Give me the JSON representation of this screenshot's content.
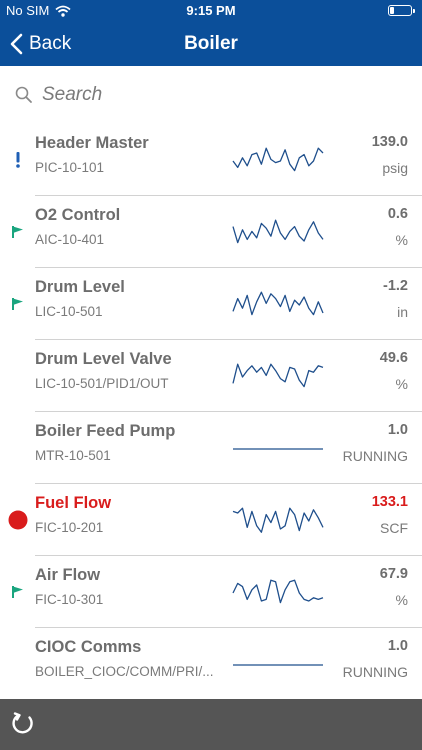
{
  "status_bar": {
    "carrier": "No SIM",
    "time": "9:15 PM",
    "battery_level_fraction": 0.2
  },
  "nav": {
    "back_label": "Back",
    "title": "Boiler"
  },
  "search": {
    "placeholder": "Search"
  },
  "colors": {
    "nav_blue": "#0b4f9a",
    "flag_teal": "#1aa57f",
    "alarm_red": "#d91c1c",
    "info_blue": "#1f5fb5",
    "spark_line": "#1f4f8c",
    "bottom_bar": "#555555"
  },
  "items": [
    {
      "name": "Header Master",
      "tag": "PIC-10-101",
      "value": "139.0",
      "unit": "psig",
      "marker": "exclamation-icon",
      "trend": [
        0.5,
        0.3,
        0.6,
        0.35,
        0.7,
        0.75,
        0.4,
        0.9,
        0.55,
        0.45,
        0.5,
        0.85,
        0.4,
        0.2,
        0.6,
        0.7,
        0.35,
        0.5,
        0.9,
        0.75
      ]
    },
    {
      "name": "O2 Control",
      "tag": "AIC-10-401",
      "value": "0.6",
      "unit": "%",
      "marker": "flag-icon",
      "trend": [
        0.7,
        0.2,
        0.6,
        0.3,
        0.55,
        0.35,
        0.8,
        0.65,
        0.4,
        0.9,
        0.5,
        0.3,
        0.55,
        0.7,
        0.4,
        0.25,
        0.6,
        0.85,
        0.5,
        0.3
      ]
    },
    {
      "name": "Drum Level",
      "tag": "LIC-10-501",
      "value": "-1.2",
      "unit": "in",
      "marker": "flag-icon",
      "trend": [
        0.3,
        0.7,
        0.4,
        0.8,
        0.2,
        0.6,
        0.9,
        0.55,
        0.85,
        0.7,
        0.45,
        0.8,
        0.3,
        0.65,
        0.5,
        0.75,
        0.4,
        0.2,
        0.6,
        0.25
      ]
    },
    {
      "name": "Drum Level Valve",
      "tag": "LIC-10-501/PID1/OUT",
      "value": "49.6",
      "unit": "%",
      "marker": "",
      "trend": [
        0.3,
        0.9,
        0.5,
        0.7,
        0.85,
        0.65,
        0.8,
        0.55,
        0.9,
        0.7,
        0.45,
        0.35,
        0.8,
        0.75,
        0.4,
        0.2,
        0.7,
        0.65,
        0.85,
        0.8
      ]
    },
    {
      "name": "Boiler Feed Pump",
      "tag": "MTR-10-501",
      "value": "1.0",
      "unit": "RUNNING",
      "marker": "",
      "trend": [
        0.5,
        0.5,
        0.5,
        0.5,
        0.5,
        0.5,
        0.5,
        0.5,
        0.5,
        0.5
      ]
    },
    {
      "name": "Fuel Flow",
      "tag": "FIC-10-201",
      "value": "133.1",
      "unit": "SCF",
      "marker": "alarm-dot-icon",
      "alarm": true,
      "trend": [
        0.8,
        0.75,
        0.9,
        0.3,
        0.8,
        0.35,
        0.15,
        0.7,
        0.45,
        0.8,
        0.25,
        0.35,
        0.9,
        0.7,
        0.2,
        0.75,
        0.5,
        0.85,
        0.6,
        0.3
      ]
    },
    {
      "name": "Air Flow",
      "tag": "FIC-10-301",
      "value": "67.9",
      "unit": "%",
      "marker": "flag-icon",
      "trend": [
        0.5,
        0.8,
        0.7,
        0.3,
        0.6,
        0.75,
        0.25,
        0.3,
        0.9,
        0.85,
        0.2,
        0.6,
        0.85,
        0.9,
        0.5,
        0.3,
        0.25,
        0.35,
        0.3,
        0.35
      ]
    },
    {
      "name": "CIOC Comms",
      "tag": "BOILER_CIOC/COMM/PRI/...",
      "value": "1.0",
      "unit": "RUNNING",
      "marker": "",
      "trend": [
        0.5,
        0.5,
        0.5,
        0.5,
        0.5,
        0.5,
        0.5,
        0.5,
        0.5,
        0.5
      ]
    }
  ]
}
